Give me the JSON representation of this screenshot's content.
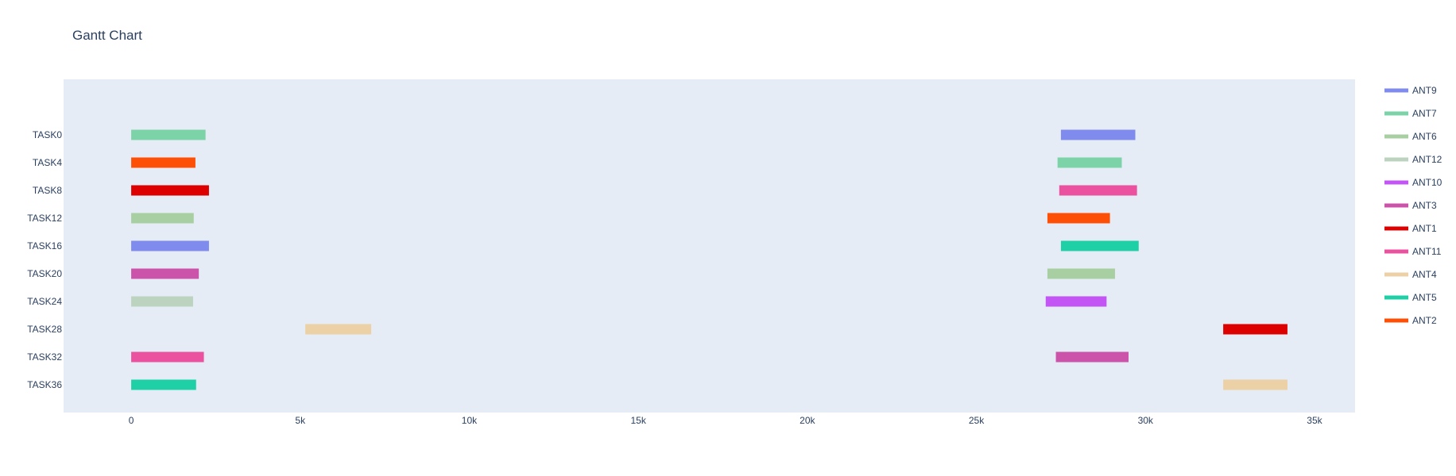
{
  "chart_data": {
    "type": "gantt",
    "title": "Gantt Chart",
    "xlabel": "",
    "ylabel": "",
    "xlim": [
      -2000,
      36200
    ],
    "x_ticks": [
      {
        "value": 0,
        "label": "0"
      },
      {
        "value": 5000,
        "label": "5k"
      },
      {
        "value": 10000,
        "label": "10k"
      },
      {
        "value": 15000,
        "label": "15k"
      },
      {
        "value": 20000,
        "label": "20k"
      },
      {
        "value": 25000,
        "label": "25k"
      },
      {
        "value": 30000,
        "label": "30k"
      },
      {
        "value": 35000,
        "label": "35k"
      }
    ],
    "categories": [
      "TASK0",
      "TASK4",
      "TASK8",
      "TASK12",
      "TASK16",
      "TASK20",
      "TASK24",
      "TASK28",
      "TASK32",
      "TASK36"
    ],
    "legend_position": "top-right",
    "plot_background": "#e5ecf6",
    "series": [
      {
        "name": "ANT9",
        "color": "#7f8ced",
        "tasks": [
          {
            "task": "TASK0",
            "start": 27500,
            "end": 29700
          },
          {
            "task": "TASK16",
            "start": 0,
            "end": 2300
          }
        ]
      },
      {
        "name": "ANT7",
        "color": "#7dd3a8",
        "tasks": [
          {
            "task": "TASK0",
            "start": 0,
            "end": 2200
          },
          {
            "task": "TASK4",
            "start": 27400,
            "end": 29300
          }
        ]
      },
      {
        "name": "ANT6",
        "color": "#a8cfa1",
        "tasks": [
          {
            "task": "TASK12",
            "start": 0,
            "end": 1850
          },
          {
            "task": "TASK20",
            "start": 27100,
            "end": 29100
          }
        ]
      },
      {
        "name": "ANT12",
        "color": "#bcd3bf",
        "tasks": [
          {
            "task": "TASK24",
            "start": 0,
            "end": 1830
          }
        ]
      },
      {
        "name": "ANT10",
        "color": "#c355f5",
        "tasks": [
          {
            "task": "TASK24",
            "start": 27050,
            "end": 28850
          }
        ]
      },
      {
        "name": "ANT3",
        "color": "#cc53aa",
        "tasks": [
          {
            "task": "TASK20",
            "start": 0,
            "end": 2000
          },
          {
            "task": "TASK32",
            "start": 27350,
            "end": 29500
          }
        ]
      },
      {
        "name": "ANT1",
        "color": "#dc0000",
        "tasks": [
          {
            "task": "TASK8",
            "start": 0,
            "end": 2300
          },
          {
            "task": "TASK28",
            "start": 32300,
            "end": 34200
          }
        ]
      },
      {
        "name": "ANT11",
        "color": "#ea52a0",
        "tasks": [
          {
            "task": "TASK8",
            "start": 27450,
            "end": 29750
          },
          {
            "task": "TASK32",
            "start": 0,
            "end": 2150
          }
        ]
      },
      {
        "name": "ANT4",
        "color": "#ecd0a6",
        "tasks": [
          {
            "task": "TASK28",
            "start": 5150,
            "end": 7100
          },
          {
            "task": "TASK36",
            "start": 32300,
            "end": 34200
          }
        ]
      },
      {
        "name": "ANT5",
        "color": "#1fd0a6",
        "tasks": [
          {
            "task": "TASK16",
            "start": 27500,
            "end": 29800
          },
          {
            "task": "TASK36",
            "start": 0,
            "end": 1920
          }
        ]
      },
      {
        "name": "ANT2",
        "color": "#fd5006",
        "tasks": [
          {
            "task": "TASK4",
            "start": 0,
            "end": 1900
          },
          {
            "task": "TASK12",
            "start": 27100,
            "end": 28950
          }
        ]
      }
    ]
  }
}
